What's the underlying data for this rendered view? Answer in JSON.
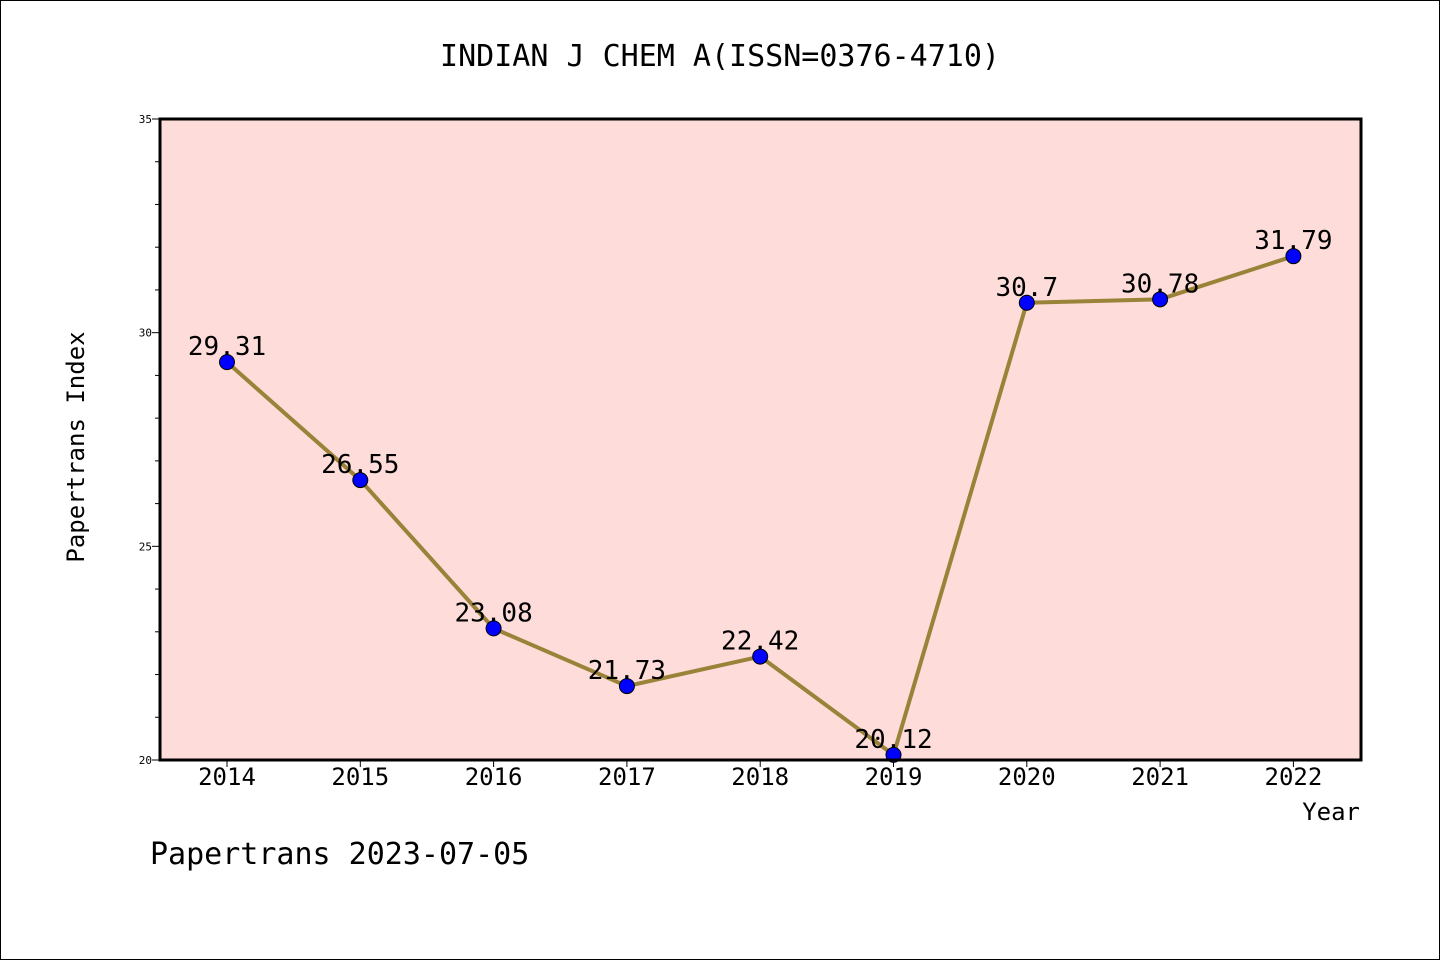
{
  "chart_data": {
    "type": "line",
    "title": "INDIAN J CHEM A(ISSN=0376-4710)",
    "xlabel": "Year",
    "ylabel": "Papertrans Index",
    "categories": [
      "2014",
      "2015",
      "2016",
      "2017",
      "2018",
      "2019",
      "2020",
      "2021",
      "2022"
    ],
    "series": [
      {
        "values": [
          29.31,
          26.55,
          23.08,
          21.73,
          22.42,
          20.12,
          30.7,
          30.78,
          31.79
        ],
        "labels": [
          "29.31",
          "26.55",
          "23.08",
          "21.73",
          "22.42",
          "20.12",
          "30.7",
          "30.78",
          "31.79"
        ]
      }
    ],
    "ylim": [
      20,
      35
    ],
    "yticks": [
      "20",
      "25",
      "30",
      "35"
    ],
    "grid": false,
    "legend": "none",
    "colors": {
      "plot_background": "#fddcd9",
      "line": "#9a8238",
      "marker": "#0000ff"
    }
  },
  "footer": {
    "text": "Papertrans 2023-07-05"
  }
}
